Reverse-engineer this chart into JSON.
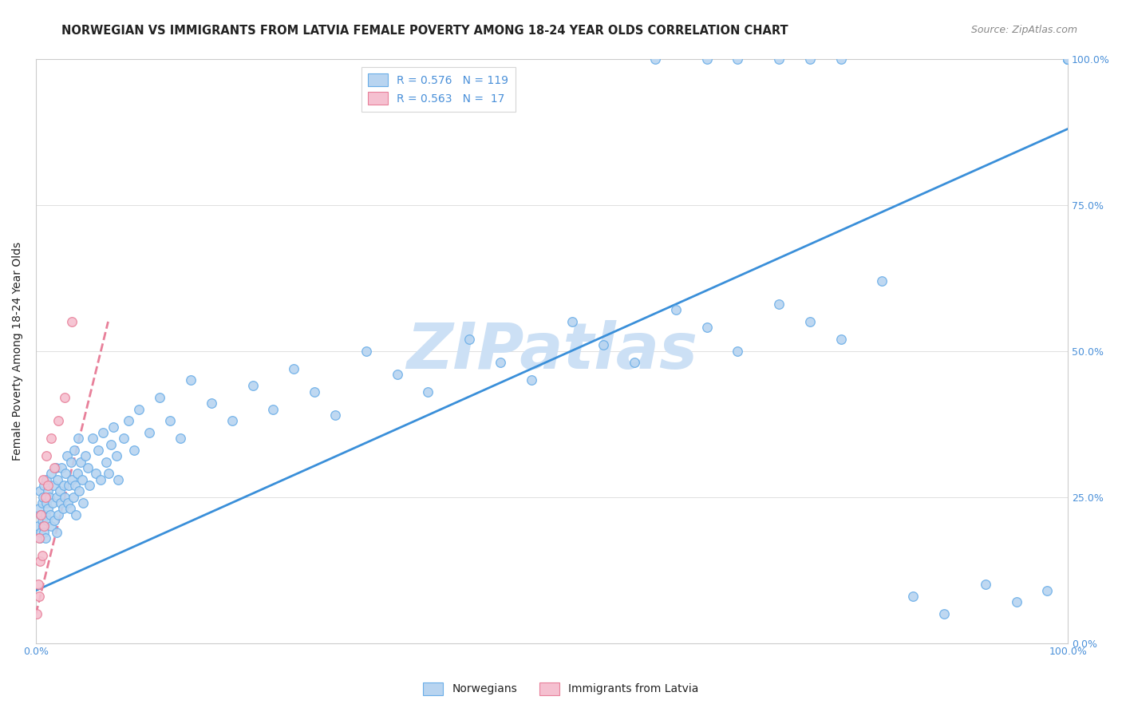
{
  "title": "NORWEGIAN VS IMMIGRANTS FROM LATVIA FEMALE POVERTY AMONG 18-24 YEAR OLDS CORRELATION CHART",
  "source": "Source: ZipAtlas.com",
  "ylabel": "Female Poverty Among 18-24 Year Olds",
  "xlim": [
    0,
    1
  ],
  "ylim": [
    0,
    1
  ],
  "ytick_vals": [
    0.0,
    0.25,
    0.5,
    0.75,
    1.0
  ],
  "ytick_labels": [
    "0.0%",
    "25.0%",
    "50.0%",
    "75.0%",
    "100.0%"
  ],
  "xtick_vals": [
    0.0,
    1.0
  ],
  "xtick_labels": [
    "0.0%",
    "100.0%"
  ],
  "grid_color": "#e0e0e0",
  "background_color": "#ffffff",
  "norwegian_color": "#b8d4f0",
  "norwegian_edge_color": "#6aaee8",
  "latvian_color": "#f5c0d0",
  "latvian_edge_color": "#e8809a",
  "blue_line_color": "#3a8fd9",
  "pink_line_color": "#e8809a",
  "watermark_color": "#cce0f5",
  "watermark_text": "ZIPatlas",
  "label_color": "#4a90d9",
  "title_color": "#222222",
  "source_color": "#888888",
  "legend_R_norwegian": "0.576",
  "legend_N_norwegian": "119",
  "legend_R_latvian": "0.563",
  "legend_N_latvian": " 17",
  "title_fontsize": 10.5,
  "source_fontsize": 9,
  "ylabel_fontsize": 10,
  "legend_fontsize": 10,
  "tick_fontsize": 9,
  "norwegian_x": [
    0.002,
    0.003,
    0.004,
    0.004,
    0.005,
    0.005,
    0.006,
    0.006,
    0.007,
    0.007,
    0.008,
    0.008,
    0.009,
    0.009,
    0.01,
    0.01,
    0.011,
    0.012,
    0.012,
    0.013,
    0.014,
    0.015,
    0.015,
    0.016,
    0.017,
    0.018,
    0.019,
    0.02,
    0.02,
    0.021,
    0.022,
    0.023,
    0.024,
    0.025,
    0.026,
    0.027,
    0.028,
    0.029,
    0.03,
    0.031,
    0.032,
    0.033,
    0.034,
    0.035,
    0.036,
    0.037,
    0.038,
    0.039,
    0.04,
    0.041,
    0.042,
    0.043,
    0.045,
    0.046,
    0.048,
    0.05,
    0.052,
    0.055,
    0.058,
    0.06,
    0.063,
    0.065,
    0.068,
    0.07,
    0.073,
    0.075,
    0.078,
    0.08,
    0.085,
    0.09,
    0.095,
    0.1,
    0.11,
    0.12,
    0.13,
    0.14,
    0.15,
    0.17,
    0.19,
    0.21,
    0.23,
    0.25,
    0.27,
    0.29,
    0.32,
    0.35,
    0.38,
    0.42,
    0.45,
    0.48,
    0.52,
    0.55,
    0.58,
    0.62,
    0.65,
    0.68,
    0.72,
    0.75,
    0.78,
    0.82,
    0.85,
    0.88,
    0.92,
    0.95,
    0.98,
    1.0,
    1.0,
    1.0,
    1.0,
    1.0,
    1.0,
    1.0,
    1.0,
    0.6,
    0.65,
    0.68,
    0.72,
    0.75,
    0.78
  ],
  "norwegian_y": [
    0.2,
    0.23,
    0.18,
    0.26,
    0.19,
    0.22,
    0.21,
    0.24,
    0.2,
    0.25,
    0.19,
    0.27,
    0.22,
    0.18,
    0.24,
    0.28,
    0.21,
    0.23,
    0.26,
    0.25,
    0.22,
    0.2,
    0.29,
    0.24,
    0.27,
    0.21,
    0.3,
    0.25,
    0.19,
    0.28,
    0.22,
    0.26,
    0.24,
    0.3,
    0.23,
    0.27,
    0.25,
    0.29,
    0.32,
    0.24,
    0.27,
    0.23,
    0.31,
    0.28,
    0.25,
    0.33,
    0.27,
    0.22,
    0.29,
    0.35,
    0.26,
    0.31,
    0.28,
    0.24,
    0.32,
    0.3,
    0.27,
    0.35,
    0.29,
    0.33,
    0.28,
    0.36,
    0.31,
    0.29,
    0.34,
    0.37,
    0.32,
    0.28,
    0.35,
    0.38,
    0.33,
    0.4,
    0.36,
    0.42,
    0.38,
    0.35,
    0.45,
    0.41,
    0.38,
    0.44,
    0.4,
    0.47,
    0.43,
    0.39,
    0.5,
    0.46,
    0.43,
    0.52,
    0.48,
    0.45,
    0.55,
    0.51,
    0.48,
    0.57,
    0.54,
    0.5,
    0.58,
    0.55,
    0.52,
    0.62,
    0.08,
    0.05,
    0.1,
    0.07,
    0.09,
    1.0,
    1.0,
    1.0,
    1.0,
    1.0,
    1.0,
    1.0,
    1.0,
    1.0,
    1.0,
    1.0,
    1.0,
    1.0,
    1.0
  ],
  "latvian_x": [
    0.001,
    0.002,
    0.003,
    0.003,
    0.004,
    0.005,
    0.006,
    0.007,
    0.008,
    0.009,
    0.01,
    0.012,
    0.015,
    0.018,
    0.022,
    0.028,
    0.035
  ],
  "latvian_y": [
    0.05,
    0.1,
    0.08,
    0.18,
    0.14,
    0.22,
    0.15,
    0.28,
    0.2,
    0.25,
    0.32,
    0.27,
    0.35,
    0.3,
    0.38,
    0.42,
    0.55
  ],
  "blue_line_x": [
    0.0,
    1.0
  ],
  "blue_line_y": [
    0.09,
    0.88
  ],
  "pink_line_x": [
    0.0,
    0.07
  ],
  "pink_line_y": [
    0.05,
    0.55
  ]
}
